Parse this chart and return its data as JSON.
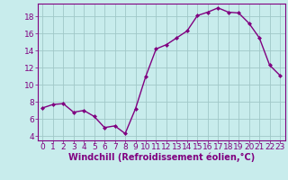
{
  "x": [
    0,
    1,
    2,
    3,
    4,
    5,
    6,
    7,
    8,
    9,
    10,
    11,
    12,
    13,
    14,
    15,
    16,
    17,
    18,
    19,
    20,
    21,
    22,
    23
  ],
  "y": [
    7.3,
    7.7,
    7.8,
    6.8,
    7.0,
    6.3,
    5.0,
    5.2,
    4.3,
    7.2,
    11.0,
    14.2,
    14.7,
    15.5,
    16.3,
    18.1,
    18.5,
    19.0,
    18.5,
    18.4,
    17.2,
    15.5,
    12.3,
    11.1
  ],
  "color": "#800080",
  "bg_color": "#c8ecec",
  "grid_color": "#a0c8c8",
  "xlabel": "Windchill (Refroidissement éolien,°C)",
  "ylim": [
    3.5,
    19.5
  ],
  "xlim": [
    -0.5,
    23.5
  ],
  "xticks": [
    0,
    1,
    2,
    3,
    4,
    5,
    6,
    7,
    8,
    9,
    10,
    11,
    12,
    13,
    14,
    15,
    16,
    17,
    18,
    19,
    20,
    21,
    22,
    23
  ],
  "yticks": [
    4,
    6,
    8,
    10,
    12,
    14,
    16,
    18
  ],
  "marker": "D",
  "markersize": 2.0,
  "linewidth": 1.0,
  "xlabel_fontsize": 7,
  "tick_fontsize": 6.5
}
